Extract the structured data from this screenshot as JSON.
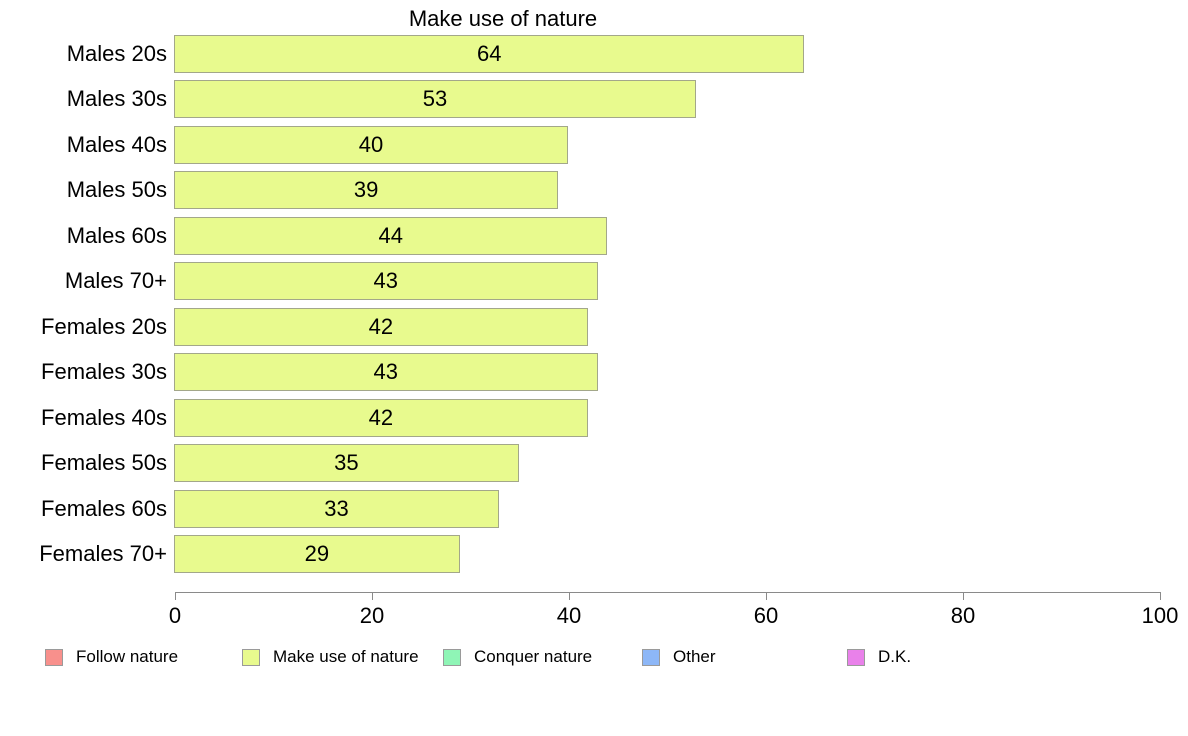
{
  "title": "Make use of nature",
  "colors": {
    "bar_fill": "#e8fa8e",
    "bar_border": "#a3a78a",
    "axis": "#8a8a8a",
    "text": "#000000",
    "background": "#ffffff"
  },
  "chart_data": {
    "type": "bar",
    "orientation": "horizontal",
    "title": "Make use of nature",
    "categories": [
      "Males 20s",
      "Males 30s",
      "Males 40s",
      "Males 50s",
      "Males 60s",
      "Males 70+",
      "Females 20s",
      "Females 30s",
      "Females 40s",
      "Females 50s",
      "Females 60s",
      "Females 70+"
    ],
    "values": [
      64,
      53,
      40,
      39,
      44,
      43,
      42,
      43,
      42,
      35,
      33,
      29
    ],
    "value_labels_shown": true,
    "xlabel": "",
    "ylabel": "",
    "xlim": [
      0,
      100
    ],
    "x_ticks": [
      0,
      20,
      40,
      60,
      80,
      100
    ],
    "grid": false,
    "bar_color": "#e8fa8e",
    "legend_position": "bottom",
    "legend": [
      {
        "label": "Follow nature",
        "color": "#f8908c"
      },
      {
        "label": "Make use of nature",
        "color": "#e8fa8e"
      },
      {
        "label": "Conquer nature",
        "color": "#8ff5b6"
      },
      {
        "label": "Other",
        "color": "#8db7f7"
      },
      {
        "label": "D.K.",
        "color": "#e981ea"
      }
    ]
  }
}
